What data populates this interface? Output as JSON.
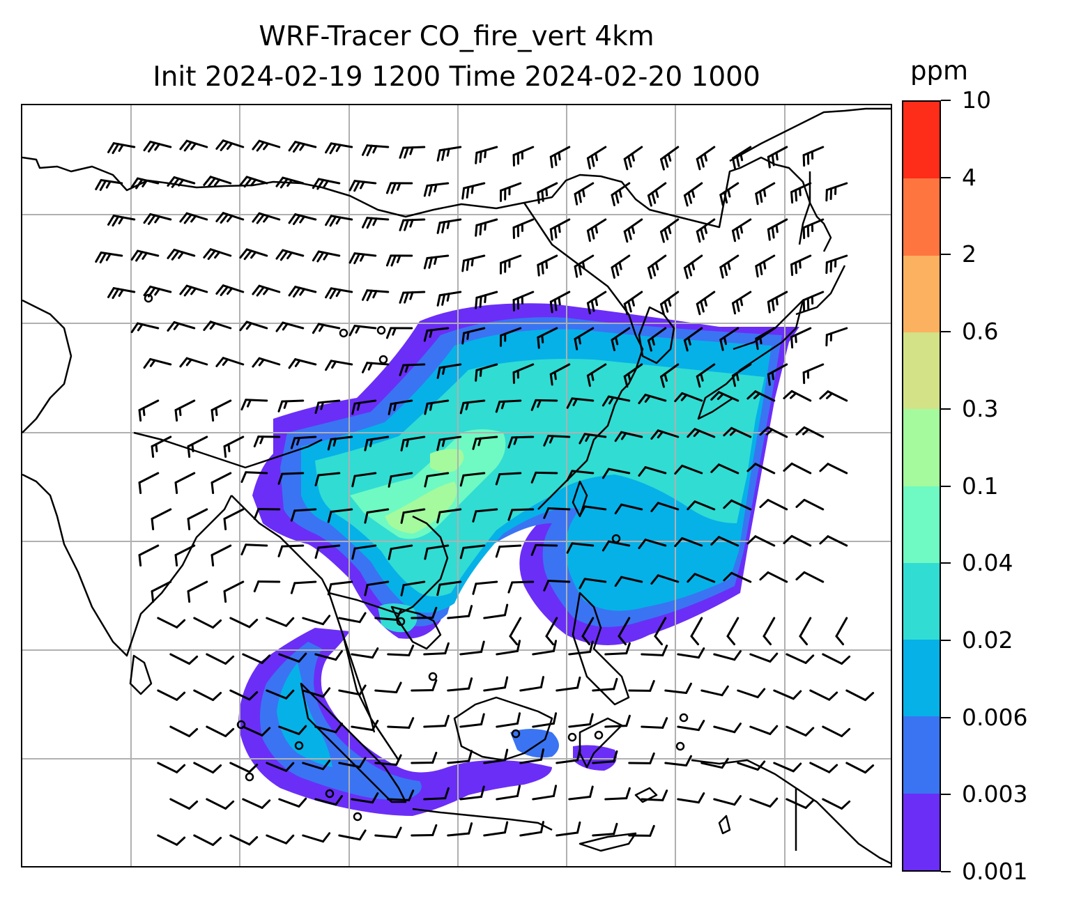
{
  "title": {
    "line1": "WRF-Tracer CO_fire_vert 4km",
    "line2": "Init 2024-02-19 1200 Time 2024-02-20 1000"
  },
  "colorbar": {
    "unit": "ppm",
    "levels": [
      "0.001",
      "0.003",
      "0.006",
      "0.02",
      "0.04",
      "0.1",
      "0.3",
      "0.6",
      "2",
      "4",
      "10"
    ],
    "colors": [
      "#6b2ef7",
      "#3a74f2",
      "#06b1e8",
      "#31dcd3",
      "#6efac2",
      "#a4fa9d",
      "#d3e187",
      "#fcb160",
      "#fe7540",
      "#fd2d1a"
    ]
  },
  "map": {
    "field": "CO_fire_vert",
    "gridlines": true,
    "wind_barbs": true,
    "coastlines": true
  }
}
